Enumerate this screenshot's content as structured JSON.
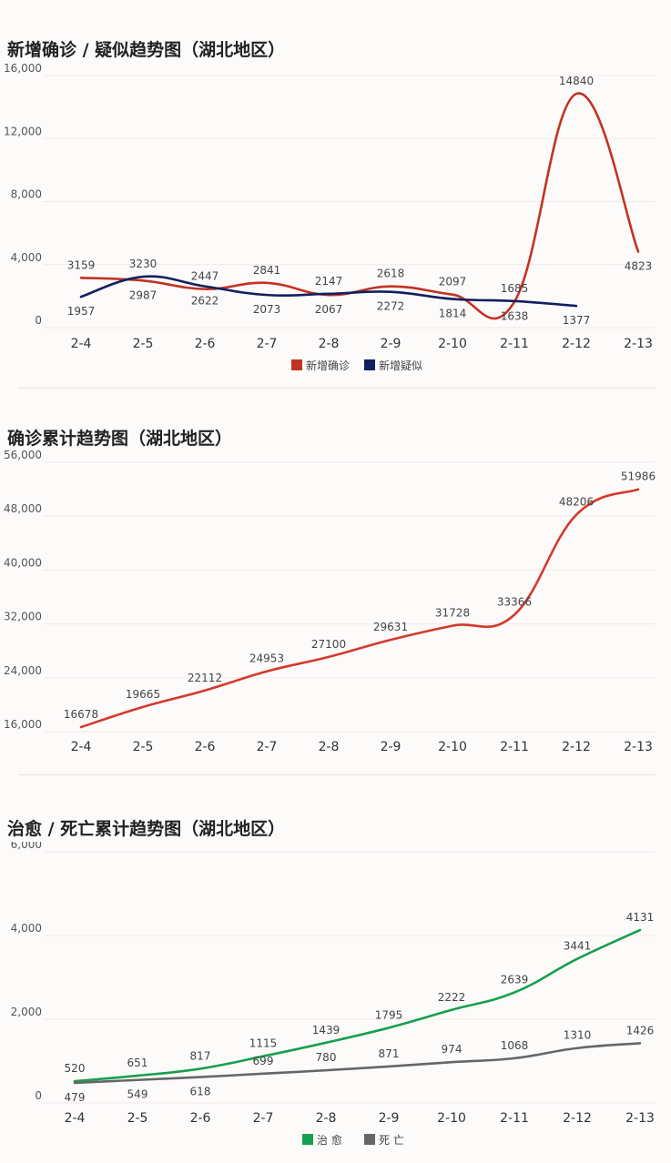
{
  "x_labels": [
    "2-4",
    "2-5",
    "2-6",
    "2-7",
    "2-8",
    "2-9",
    "2-10",
    "2-11",
    "2-12",
    "2-13"
  ],
  "chart_data": [
    {
      "type": "line",
      "title": "新增确诊 / 疑似趋势图（湖北地区）",
      "categories": [
        "2-4",
        "2-5",
        "2-6",
        "2-7",
        "2-8",
        "2-9",
        "2-10",
        "2-11",
        "2-12",
        "2-13"
      ],
      "ylim": [
        0,
        16000
      ],
      "yticks": [
        "0",
        "4,000",
        "8,000",
        "12,000",
        "16,000"
      ],
      "ytick_values": [
        0,
        4000,
        8000,
        12000,
        16000
      ],
      "legend_position": "bottom",
      "grid": true,
      "series": [
        {
          "name": "新增确诊",
          "color": "#c23322",
          "values": [
            3159,
            2987,
            2447,
            2841,
            2067,
            2618,
            2097,
            1638,
            14840,
            4823
          ]
        },
        {
          "name": "新增疑似",
          "color": "#102060",
          "values": [
            1957,
            3230,
            2622,
            2073,
            2147,
            2272,
            1814,
            1685,
            1377,
            null
          ]
        }
      ]
    },
    {
      "type": "line",
      "title": "确诊累计趋势图（湖北地区）",
      "categories": [
        "2-4",
        "2-5",
        "2-6",
        "2-7",
        "2-8",
        "2-9",
        "2-10",
        "2-11",
        "2-12",
        "2-13"
      ],
      "ylim": [
        16000,
        56000
      ],
      "yticks": [
        "16,000",
        "24,000",
        "32,000",
        "40,000",
        "48,000",
        "56,000"
      ],
      "ytick_values": [
        16000,
        24000,
        32000,
        40000,
        48000,
        56000
      ],
      "grid": true,
      "series": [
        {
          "name": "",
          "color": "#d33a2c",
          "values": [
            16678,
            19665,
            22112,
            24953,
            27100,
            29631,
            31728,
            33366,
            48206,
            51986
          ]
        }
      ]
    },
    {
      "type": "line",
      "title": "治愈 / 死亡累计趋势图（湖北地区）",
      "categories": [
        "2-4",
        "2-5",
        "2-6",
        "2-7",
        "2-8",
        "2-9",
        "2-10",
        "2-11",
        "2-12",
        "2-13"
      ],
      "ylim": [
        0,
        6000
      ],
      "yticks": [
        "0",
        "2,000",
        "4,000",
        "6,000"
      ],
      "ytick_values": [
        0,
        2000,
        4000,
        6000
      ],
      "legend_position": "bottom",
      "grid": true,
      "series": [
        {
          "name": "治 愈",
          "color": "#16a04f",
          "values": [
            520,
            651,
            817,
            1115,
            1439,
            1795,
            2222,
            2639,
            3441,
            4131
          ]
        },
        {
          "name": "死 亡",
          "color": "#666666",
          "values": [
            479,
            549,
            618,
            699,
            780,
            871,
            974,
            1068,
            1310,
            1426
          ]
        }
      ]
    }
  ]
}
